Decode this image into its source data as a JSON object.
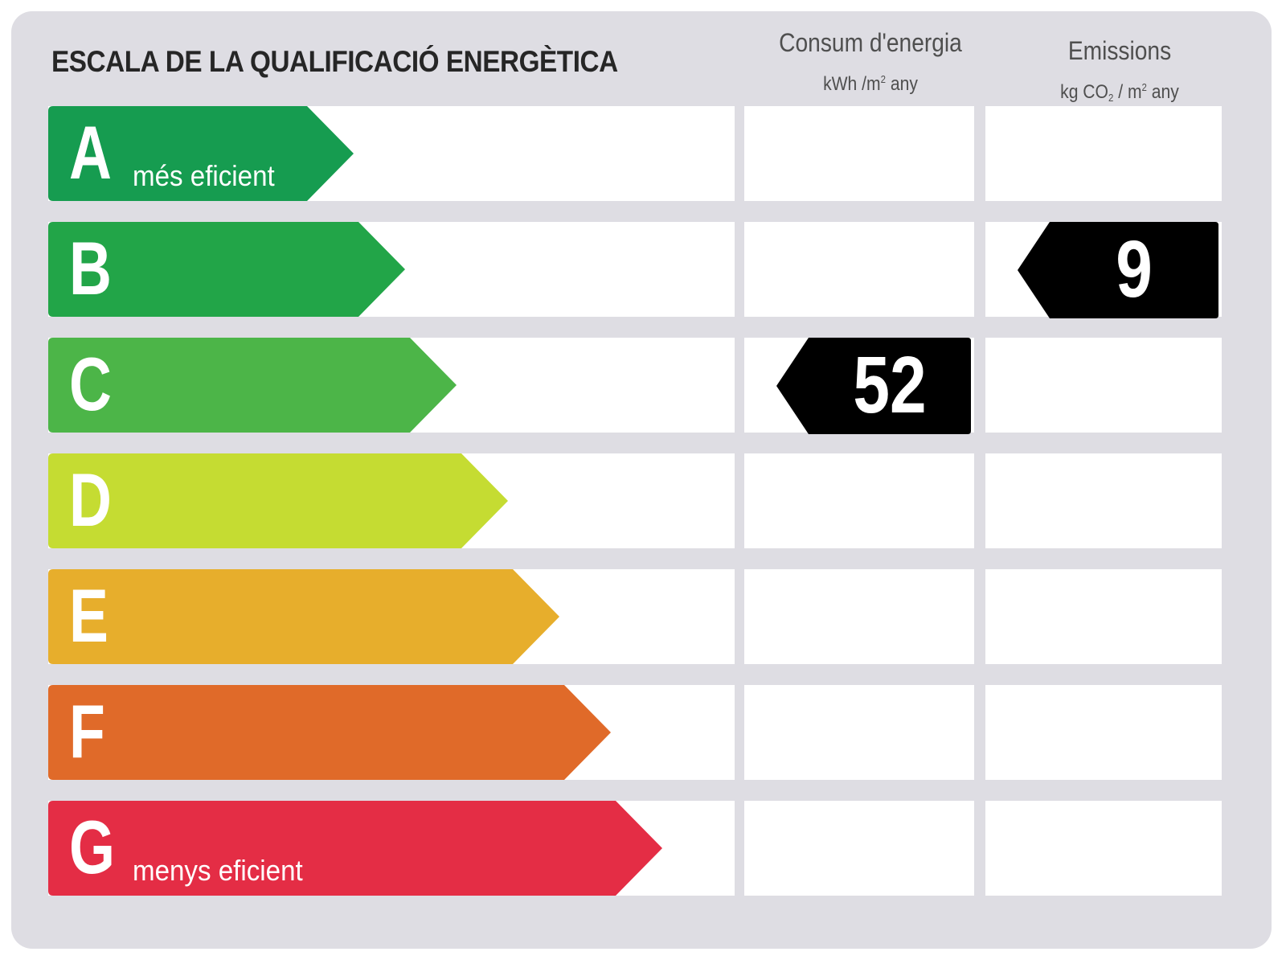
{
  "title": "ESCALA DE LA QUALIFICACIÓ ENERGÈTICA",
  "columns": {
    "consum": {
      "label": "Consum d'energia",
      "unit_pre": "kWh /m",
      "unit_sup": "2",
      "unit_post": " any"
    },
    "emissions": {
      "label": "Emissions",
      "unit_pre": "kg CO",
      "unit_sub": "2",
      "unit_mid": " / m",
      "unit_sup": "2",
      "unit_post": " any"
    }
  },
  "classes": [
    {
      "letter": "A",
      "label": "més eficient",
      "color": "#169c50"
    },
    {
      "letter": "B",
      "label": "",
      "color": "#22a548"
    },
    {
      "letter": "C",
      "label": "",
      "color": "#4cb548"
    },
    {
      "letter": "D",
      "label": "",
      "color": "#c5dc32"
    },
    {
      "letter": "E",
      "label": "",
      "color": "#e7ae2c"
    },
    {
      "letter": "F",
      "label": "",
      "color": "#e06a29"
    },
    {
      "letter": "G",
      "label": "menys eficient",
      "color": "#e42d45"
    }
  ],
  "ratings": {
    "consum": {
      "value": "52",
      "class": "C"
    },
    "emissions": {
      "value": "9",
      "class": "B"
    }
  },
  "colors": {
    "indicator": "#000000",
    "panel": "#dedde3"
  }
}
